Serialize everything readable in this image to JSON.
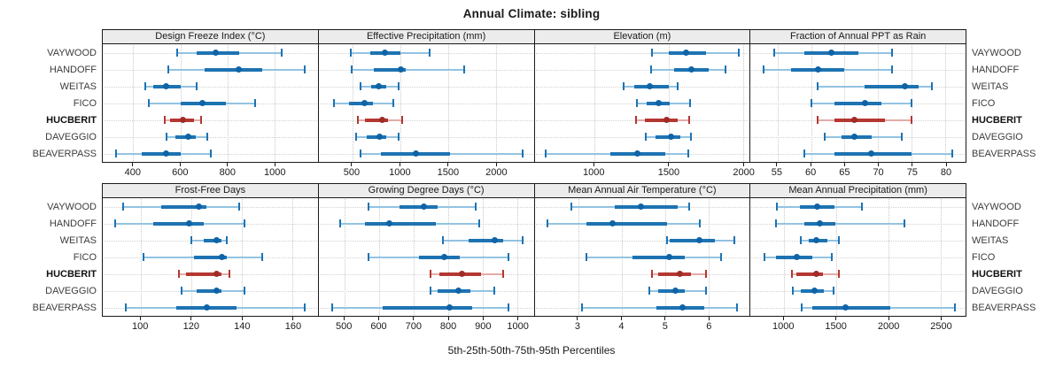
{
  "title": "Annual Climate: sibling",
  "caption": "5th-25th-50th-75th-95th Percentiles",
  "sites": [
    "VAYWOOD",
    "HANDOFF",
    "WEITAS",
    "FICO",
    "HUCBERIT",
    "DAVEGGIO",
    "BEAVERPASS"
  ],
  "highlight_site": "HUCBERIT",
  "style": {
    "blue": "#1D73B2",
    "blue_light": "#93C3E2",
    "blue_dot": "#0F63A6",
    "red": "#B43732",
    "red_light": "#E3ACA8",
    "red_dot": "#A02C27",
    "strip_bg": "#ECECEC",
    "grid": "#C9C9C9",
    "border": "#1A1A1A"
  },
  "chart_data": {
    "type": "dot-interval-trellis",
    "layout": "2 rows x 4 columns, shared site axis, labels on both sides",
    "percentiles": [
      5,
      25,
      50,
      75,
      95
    ],
    "sites": [
      "VAYWOOD",
      "HANDOFF",
      "WEITAS",
      "FICO",
      "HUCBERIT",
      "DAVEGGIO",
      "BEAVERPASS"
    ],
    "highlight": "HUCBERIT",
    "title": "Annual Climate: sibling",
    "xlabel": "5th-25th-50th-75th-95th Percentiles",
    "panels": [
      {
        "title": "Design Freeze Index (°C)",
        "ticks": [
          400,
          600,
          800,
          1000
        ],
        "xlim": [
          270,
          1185
        ],
        "values": [
          [
            585,
            670,
            750,
            850,
            1030
          ],
          [
            550,
            705,
            850,
            950,
            1130
          ],
          [
            450,
            485,
            540,
            600,
            670
          ],
          [
            465,
            600,
            695,
            795,
            920
          ],
          [
            535,
            555,
            610,
            660,
            690
          ],
          [
            540,
            580,
            635,
            665,
            715
          ],
          [
            325,
            435,
            540,
            600,
            730
          ]
        ]
      },
      {
        "title": "Effective Precipitation (mm)",
        "ticks": [
          500,
          1000,
          1500,
          2000
        ],
        "xlim": [
          150,
          2395
        ],
        "values": [
          [
            485,
            690,
            845,
            1000,
            1305
          ],
          [
            495,
            730,
            1010,
            1060,
            1665
          ],
          [
            590,
            700,
            780,
            855,
            985
          ],
          [
            310,
            470,
            625,
            715,
            925
          ],
          [
            555,
            630,
            810,
            870,
            1020
          ],
          [
            545,
            655,
            785,
            855,
            985
          ],
          [
            585,
            800,
            1165,
            1520,
            2280
          ]
        ]
      },
      {
        "title": "Elevation (m)",
        "ticks": [
          1000,
          1500,
          2000
        ],
        "xlim": [
          600,
          2045
        ],
        "values": [
          [
            1390,
            1500,
            1615,
            1750,
            1970
          ],
          [
            1380,
            1540,
            1655,
            1770,
            1880
          ],
          [
            1200,
            1270,
            1375,
            1500,
            1560
          ],
          [
            1285,
            1355,
            1435,
            1510,
            1645
          ],
          [
            1280,
            1340,
            1485,
            1560,
            1640
          ],
          [
            1350,
            1415,
            1515,
            1580,
            1650
          ],
          [
            675,
            1110,
            1290,
            1480,
            1630
          ]
        ]
      },
      {
        "title": "Fraction of Annual PPT as Rain",
        "ticks": [
          55,
          60,
          65,
          70,
          75,
          80
        ],
        "xlim": [
          51,
          83
        ],
        "values": [
          [
            54.5,
            59,
            63,
            67,
            72
          ],
          [
            53,
            57,
            61,
            65,
            72
          ],
          [
            61,
            68,
            74,
            76,
            78
          ],
          [
            60,
            63.5,
            68,
            70.5,
            75
          ],
          [
            61,
            63.5,
            66.5,
            71,
            75
          ],
          [
            62,
            64.5,
            66.5,
            69,
            73.5
          ],
          [
            59,
            63.5,
            69,
            75,
            81
          ]
        ]
      },
      {
        "title": "Frost-Free Days",
        "ticks": [
          100,
          120,
          140,
          160
        ],
        "xlim": [
          85,
          170
        ],
        "values": [
          [
            93,
            108,
            123,
            126,
            139
          ],
          [
            90,
            105,
            119,
            125,
            141
          ],
          [
            120,
            125,
            130,
            132,
            134
          ],
          [
            101,
            121,
            132,
            134,
            148
          ],
          [
            115,
            118,
            130,
            132,
            135
          ],
          [
            116,
            122,
            130,
            132,
            141
          ],
          [
            94,
            114,
            126,
            138,
            165
          ]
        ]
      },
      {
        "title": "Growing Degree Days (°C)",
        "ticks": [
          500,
          600,
          700,
          800,
          900,
          1000
        ],
        "xlim": [
          425,
          1048
        ],
        "values": [
          [
            570,
            660,
            730,
            770,
            880
          ],
          [
            487,
            560,
            630,
            765,
            890
          ],
          [
            785,
            860,
            935,
            960,
            1015
          ],
          [
            570,
            715,
            790,
            835,
            975
          ],
          [
            750,
            775,
            840,
            895,
            960
          ],
          [
            750,
            770,
            830,
            865,
            935
          ],
          [
            465,
            610,
            805,
            870,
            975
          ]
        ]
      },
      {
        "title": "Mean Annual Air Temperature (°C)",
        "ticks": [
          3,
          4,
          5,
          6
        ],
        "xlim": [
          2.0,
          6.95
        ],
        "values": [
          [
            2.85,
            3.85,
            4.45,
            5.3,
            5.55
          ],
          [
            2.3,
            3.2,
            3.8,
            5.05,
            5.8
          ],
          [
            5.05,
            5.1,
            5.8,
            6.15,
            6.6
          ],
          [
            3.2,
            4.25,
            5.1,
            5.45,
            6.3
          ],
          [
            4.7,
            4.85,
            5.35,
            5.6,
            5.95
          ],
          [
            4.65,
            4.85,
            5.25,
            5.45,
            5.95
          ],
          [
            3.1,
            4.8,
            5.4,
            5.9,
            6.65
          ]
        ]
      },
      {
        "title": "Mean Annual Precipitation (mm)",
        "ticks": [
          1000,
          1500,
          2000,
          2500
        ],
        "xlim": [
          680,
          2740
        ],
        "values": [
          [
            930,
            1155,
            1320,
            1480,
            1745
          ],
          [
            920,
            1195,
            1345,
            1495,
            2155
          ],
          [
            1165,
            1240,
            1310,
            1415,
            1530
          ],
          [
            810,
            920,
            1120,
            1275,
            1460
          ],
          [
            1080,
            1120,
            1310,
            1375,
            1525
          ],
          [
            1085,
            1165,
            1295,
            1380,
            1475
          ],
          [
            1170,
            1275,
            1590,
            2015,
            2635
          ]
        ]
      }
    ]
  }
}
